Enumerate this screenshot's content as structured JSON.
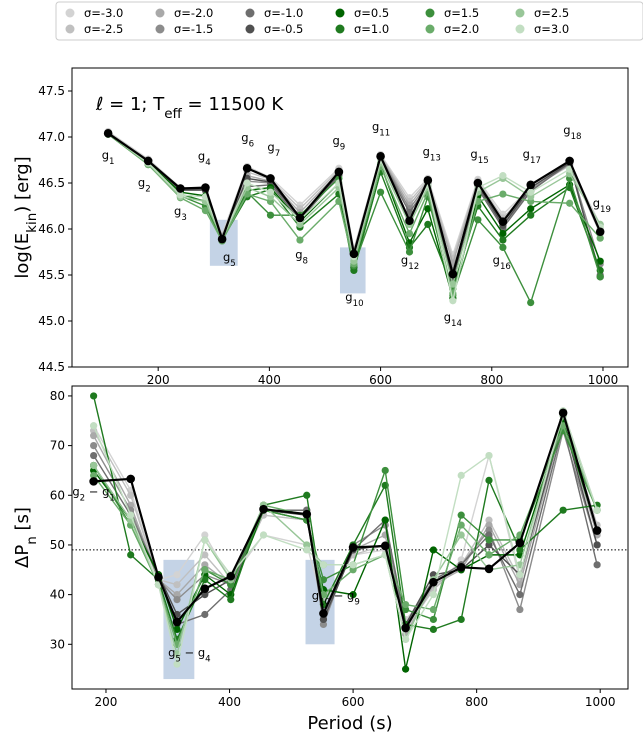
{
  "chart_data": [
    {
      "type": "line",
      "annotation": "ℓ = 1; T_eff = 11500 K",
      "annotation_parts": {
        "l": "ℓ = 1; T",
        "sub": "eff",
        "rest": " = 11500 K"
      },
      "xlabel": "",
      "ylabel": {
        "main": "log(E",
        "sub": "kin",
        "rest": ") [erg]"
      },
      "xlim": [
        45,
        1045
      ],
      "ylim": [
        44.5,
        47.75
      ],
      "xticks": [
        200,
        400,
        600,
        800,
        1000
      ],
      "yticks": [
        44.5,
        45.0,
        45.5,
        46.0,
        46.5,
        47.0,
        47.5
      ],
      "grid": false,
      "x": [
        110,
        182,
        240,
        285,
        315,
        360,
        402,
        455,
        525,
        552,
        600,
        652,
        685,
        730,
        775,
        820,
        870,
        940,
        995
      ],
      "highlight_regions": [
        {
          "x0": 293,
          "x1": 343,
          "y0": 45.6,
          "y1": 46.1
        },
        {
          "x0": 527,
          "x1": 573,
          "y0": 45.3,
          "y1": 45.8
        }
      ],
      "mode_labels": [
        {
          "main": "g",
          "sub": "1",
          "x": 110,
          "y": 46.76
        },
        {
          "main": "g",
          "sub": "2",
          "x": 175,
          "y": 46.46
        },
        {
          "main": "g",
          "sub": "3",
          "x": 240,
          "y": 46.15
        },
        {
          "main": "g",
          "sub": "4",
          "x": 283,
          "y": 46.75
        },
        {
          "main": "g",
          "sub": "5",
          "x": 328,
          "y": 45.65
        },
        {
          "main": "g",
          "sub": "6",
          "x": 361,
          "y": 46.95
        },
        {
          "main": "g",
          "sub": "7",
          "x": 408,
          "y": 46.85
        },
        {
          "main": "g",
          "sub": "8",
          "x": 458,
          "y": 45.68
        },
        {
          "main": "g",
          "sub": "9",
          "x": 525,
          "y": 46.92
        },
        {
          "main": "g",
          "sub": "10",
          "x": 553,
          "y": 45.22
        },
        {
          "main": "g",
          "sub": "11",
          "x": 601,
          "y": 47.07
        },
        {
          "main": "g",
          "sub": "12",
          "x": 653,
          "y": 45.62
        },
        {
          "main": "g",
          "sub": "13",
          "x": 692,
          "y": 46.8
        },
        {
          "main": "g",
          "sub": "14",
          "x": 730,
          "y": 45.0
        },
        {
          "main": "g",
          "sub": "15",
          "x": 778,
          "y": 46.77
        },
        {
          "main": "g",
          "sub": "16",
          "x": 818,
          "y": 45.62
        },
        {
          "main": "g",
          "sub": "17",
          "x": 872,
          "y": 46.77
        },
        {
          "main": "g",
          "sub": "18",
          "x": 945,
          "y": 47.03
        },
        {
          "main": "g",
          "sub": "19",
          "x": 998,
          "y": 46.24
        }
      ],
      "series": [
        {
          "name": "σ=-3.0",
          "color": "#d3d3d3",
          "values": [
            47.06,
            46.76,
            46.45,
            46.44,
            45.94,
            46.68,
            46.56,
            46.26,
            46.66,
            45.78,
            46.81,
            46.34,
            46.55,
            45.72,
            46.54,
            46.16,
            46.45,
            46.7,
            46.05
          ]
        },
        {
          "name": "σ=-2.5",
          "color": "#c0c0c0",
          "values": [
            47.05,
            46.75,
            46.44,
            46.43,
            45.93,
            46.62,
            46.54,
            46.22,
            46.64,
            45.77,
            46.8,
            46.3,
            46.53,
            45.68,
            46.52,
            46.12,
            46.44,
            46.69,
            46.0
          ]
        },
        {
          "name": "σ=-2.0",
          "color": "#a9a9a9",
          "values": [
            47.05,
            46.74,
            46.43,
            46.42,
            45.92,
            46.58,
            46.52,
            46.18,
            46.62,
            45.76,
            46.79,
            46.26,
            46.51,
            45.63,
            46.5,
            46.08,
            46.43,
            46.7,
            45.95
          ]
        },
        {
          "name": "σ=-1.5",
          "color": "#8c8c8c",
          "values": [
            47.04,
            46.73,
            46.42,
            46.42,
            45.91,
            46.52,
            46.5,
            46.14,
            46.6,
            45.74,
            46.78,
            46.22,
            46.49,
            45.55,
            46.47,
            46.04,
            46.42,
            46.71,
            45.62
          ]
        },
        {
          "name": "σ=-1.0",
          "color": "#6e6e6e",
          "values": [
            47.04,
            46.73,
            46.42,
            46.42,
            45.9,
            46.46,
            46.48,
            46.1,
            46.58,
            45.73,
            46.77,
            46.18,
            46.47,
            45.47,
            46.44,
            46.01,
            46.41,
            46.72,
            45.5
          ]
        },
        {
          "name": "σ=-0.5",
          "color": "#505050",
          "values": [
            47.04,
            46.73,
            46.43,
            46.43,
            45.9,
            46.55,
            46.51,
            46.12,
            46.6,
            45.73,
            46.78,
            46.1,
            46.5,
            45.45,
            46.47,
            46.04,
            46.45,
            46.72,
            45.48
          ]
        },
        {
          "name": "σ=0.5",
          "color": "#006400",
          "values": [
            47.03,
            46.72,
            46.4,
            46.36,
            45.89,
            46.42,
            46.45,
            46.08,
            46.5,
            45.58,
            46.7,
            45.85,
            46.22,
            45.25,
            46.36,
            45.95,
            46.22,
            46.48,
            45.65
          ]
        },
        {
          "name": "σ=1.0",
          "color": "#1f7a1f",
          "values": [
            47.03,
            46.71,
            46.38,
            46.3,
            45.88,
            46.35,
            46.43,
            46.02,
            46.38,
            45.55,
            46.62,
            45.8,
            46.05,
            45.35,
            46.25,
            45.88,
            46.15,
            46.45,
            45.55
          ]
        },
        {
          "name": "σ=1.5",
          "color": "#3c8f3c",
          "values": [
            47.03,
            46.7,
            46.36,
            46.25,
            45.87,
            46.4,
            46.15,
            46.15,
            46.55,
            45.6,
            46.4,
            45.75,
            46.35,
            45.28,
            46.1,
            45.8,
            45.2,
            46.55,
            45.48
          ]
        },
        {
          "name": "σ=2.0",
          "color": "#6aac6a",
          "values": [
            47.03,
            46.7,
            46.34,
            46.2,
            45.87,
            46.38,
            46.3,
            45.88,
            46.3,
            45.62,
            46.68,
            45.95,
            46.4,
            45.3,
            46.3,
            46.38,
            46.3,
            46.28,
            45.9
          ]
        },
        {
          "name": "σ=2.5",
          "color": "#98c698",
          "values": [
            47.04,
            46.71,
            46.35,
            46.3,
            45.89,
            46.45,
            46.35,
            46.05,
            46.45,
            45.65,
            46.72,
            46.05,
            46.45,
            45.4,
            46.4,
            46.55,
            46.35,
            46.6,
            46.05
          ]
        },
        {
          "name": "σ=3.0",
          "color": "#c2dec2",
          "values": [
            47.04,
            46.72,
            46.37,
            46.35,
            45.9,
            46.5,
            46.4,
            46.1,
            46.5,
            45.7,
            46.75,
            46.1,
            46.48,
            45.22,
            46.45,
            46.58,
            46.4,
            46.65,
            46.02
          ]
        },
        {
          "name": "",
          "color": "#000000",
          "values": [
            47.04,
            46.74,
            46.44,
            46.45,
            45.89,
            46.66,
            46.55,
            46.12,
            46.62,
            45.73,
            46.79,
            46.09,
            46.53,
            45.51,
            46.5,
            46.08,
            46.48,
            46.74,
            45.97
          ]
        }
      ]
    },
    {
      "type": "line",
      "xlabel": "Period (s)",
      "ylabel": {
        "main": "ΔP",
        "sub": "n",
        "rest": " [s]"
      },
      "xlim": [
        145,
        1045
      ],
      "ylim": [
        21,
        82
      ],
      "xticks": [
        200,
        400,
        600,
        800,
        1000
      ],
      "yticks": [
        30,
        40,
        50,
        60,
        70,
        80
      ],
      "grid": false,
      "reference_line": 49,
      "x": [
        180,
        240,
        285,
        315,
        360,
        402,
        455,
        525,
        552,
        600,
        652,
        685,
        730,
        775,
        820,
        870,
        940,
        995
      ],
      "highlight_regions": [
        {
          "x0": 293,
          "x1": 343,
          "y0": 23,
          "y1": 47
        },
        {
          "x0": 523,
          "x1": 570,
          "y0": 30,
          "y1": 47
        }
      ],
      "diff_labels": [
        {
          "a": "2",
          "b": "1",
          "x": 180,
          "y": 60
        },
        {
          "a": "5",
          "b": "4",
          "x": 335,
          "y": 27.5
        },
        {
          "a": "10",
          "b": "9",
          "x": 572,
          "y": 39
        }
      ],
      "series": [
        {
          "name": "σ=-3.0",
          "color": "#d3d3d3",
          "values": [
            74,
            61,
            43,
            44,
            52,
            43,
            52,
            50,
            38,
            48,
            49,
            35,
            41,
            47,
            68,
            43,
            77,
            57
          ]
        },
        {
          "name": "σ=-2.5",
          "color": "#c0c0c0",
          "values": [
            73,
            60,
            43,
            42,
            48,
            42,
            56,
            55,
            39,
            48,
            50,
            33,
            41,
            46,
            55,
            43,
            76,
            54
          ]
        },
        {
          "name": "σ=-2.0",
          "color": "#a9a9a9",
          "values": [
            72,
            58,
            43,
            40,
            46,
            42,
            57,
            57,
            36,
            49,
            52,
            32,
            42,
            45,
            54,
            42,
            75,
            52
          ]
        },
        {
          "name": "σ=-1.5",
          "color": "#8c8c8c",
          "values": [
            70,
            57,
            43,
            39,
            44,
            42,
            57,
            57,
            34,
            50,
            54,
            33,
            43,
            46,
            53,
            37,
            73,
            50
          ]
        },
        {
          "name": "σ=-1.0",
          "color": "#6e6e6e",
          "values": [
            68,
            56,
            44,
            34,
            36,
            41,
            57,
            57,
            35,
            49,
            55,
            34,
            43,
            46,
            52,
            40,
            74,
            46
          ]
        },
        {
          "name": "σ=-0.5",
          "color": "#505050",
          "values": [
            66,
            55,
            44,
            36,
            40,
            43,
            57,
            56,
            35,
            49,
            50,
            34,
            44,
            45,
            50,
            44,
            75,
            50
          ]
        },
        {
          "name": "σ=0.5",
          "color": "#006400",
          "values": [
            65,
            55,
            44,
            33,
            44,
            40,
            57,
            55,
            41,
            40,
            55,
            25,
            49,
            45,
            48,
            48,
            75,
            53
          ]
        },
        {
          "name": "σ=1.0",
          "color": "#1f7a1f",
          "values": [
            80,
            48,
            43,
            31,
            43,
            39,
            58,
            60,
            38,
            50,
            62,
            34,
            33,
            35,
            63,
            49,
            57,
            58
          ]
        },
        {
          "name": "σ=1.5",
          "color": "#3c8f3c",
          "values": [
            66,
            54,
            42,
            30,
            45,
            42,
            57,
            55,
            43,
            46,
            65,
            37,
            35,
            56,
            51,
            51,
            73,
            57
          ]
        },
        {
          "name": "σ=2.0",
          "color": "#6aac6a",
          "values": [
            64,
            54,
            42,
            30,
            45,
            43,
            58,
            56,
            40,
            45,
            48,
            38,
            37,
            54,
            48,
            52,
            74,
            57
          ]
        },
        {
          "name": "σ=2.5",
          "color": "#98c698",
          "values": [
            66,
            55,
            42,
            28,
            51,
            43,
            58,
            50,
            46,
            46,
            48,
            31,
            43,
            52,
            45,
            46,
            76,
            57
          ]
        },
        {
          "name": "σ=3.0",
          "color": "#c2dec2",
          "values": [
            74,
            56,
            42,
            26,
            51,
            44,
            52,
            49,
            46,
            46,
            48,
            31,
            40,
            64,
            68,
            44,
            77,
            57
          ]
        },
        {
          "name": "",
          "color": "#000000",
          "values": [
            62.8,
            63.3,
            43.5,
            34.5,
            41.2,
            43.7,
            57.2,
            56.2,
            36.2,
            49.5,
            49.8,
            33.3,
            42.5,
            45.5,
            45.2,
            50.4,
            76.6,
            52.9
          ]
        }
      ]
    }
  ]
}
